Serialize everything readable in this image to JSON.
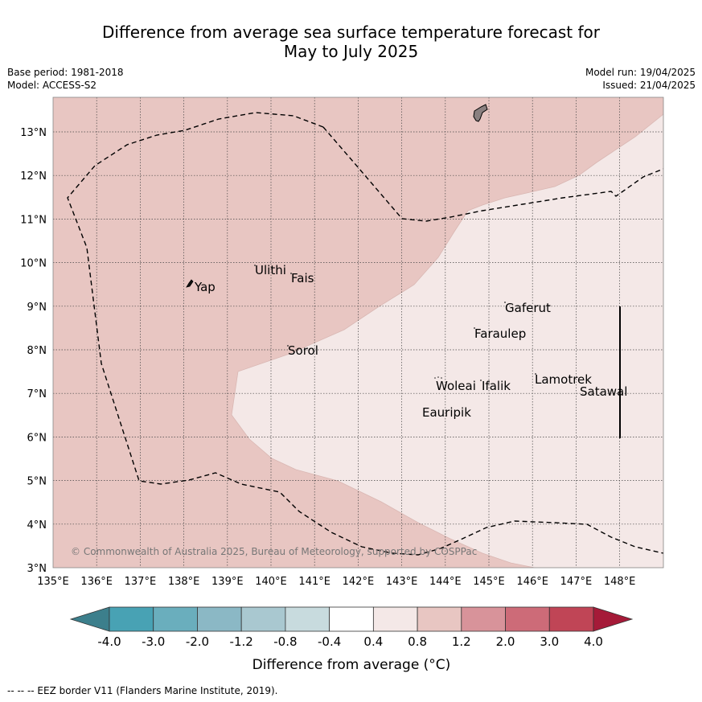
{
  "title": {
    "line1": "Difference from average sea surface temperature forecast for",
    "line2": "May to July 2025"
  },
  "meta": {
    "base_period": "Base period: 1981-2018",
    "model": "Model: ACCESS-S2",
    "model_run": "Model run: 19/04/2025",
    "issued": "Issued: 21/04/2025"
  },
  "map": {
    "lon_ticks": [
      "135°E",
      "136°E",
      "137°E",
      "138°E",
      "139°E",
      "140°E",
      "141°E",
      "142°E",
      "143°E",
      "144°E",
      "145°E",
      "146°E",
      "147°E",
      "148°E"
    ],
    "lat_ticks": [
      "3°N",
      "4°N",
      "5°N",
      "6°N",
      "7°N",
      "8°N",
      "9°N",
      "10°N",
      "11°N",
      "12°N",
      "13°N"
    ],
    "places": [
      {
        "name": "Yap"
      },
      {
        "name": "Ulithi"
      },
      {
        "name": "Fais"
      },
      {
        "name": "Gaferut"
      },
      {
        "name": "Faraulep"
      },
      {
        "name": "Sorol"
      },
      {
        "name": "Woleai"
      },
      {
        "name": "Ifalik"
      },
      {
        "name": "Lamotrek"
      },
      {
        "name": "Satawal"
      },
      {
        "name": "Eauripik"
      }
    ],
    "copyright": "© Commonwealth of Australia 2025, Bureau of Meteorology, supported by COSPPac",
    "fill_colors": {
      "anomaly_0_4_to_0_8": "#f4e8e7",
      "anomaly_0_8_to_1_2": "#e8c6c2"
    }
  },
  "colorbar": {
    "labels": [
      "-4.0",
      "-3.0",
      "-2.0",
      "-1.2",
      "-0.8",
      "-0.4",
      "0.4",
      "0.8",
      "1.2",
      "2.0",
      "3.0",
      "4.0"
    ],
    "colors": [
      "#3c7f8c",
      "#48a2b4",
      "#6aaebd",
      "#8bb8c5",
      "#a9c8d0",
      "#c8dbde",
      "#ffffff",
      "#f4e8e7",
      "#e8c6c2",
      "#d8939a",
      "#cd6b78",
      "#c04556",
      "#a51a38"
    ],
    "title": "Difference from average (°C)"
  },
  "footer": "-- -- -- EEZ border V11 (Flanders Marine Institute, 2019)."
}
